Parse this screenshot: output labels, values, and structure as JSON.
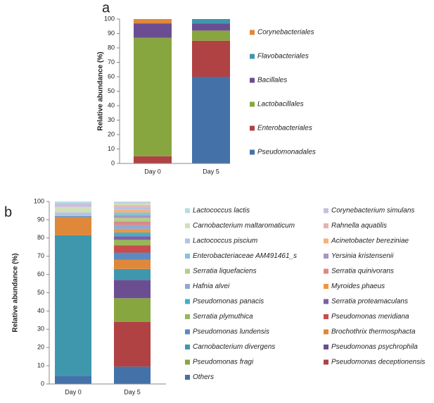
{
  "chart_data": [
    {
      "type": "bar",
      "stacked": true,
      "title": "a",
      "ylabel": "Relative abundance (%)",
      "categories": [
        "Day 0",
        "Day 5"
      ],
      "ylim": [
        0,
        100
      ],
      "yticks": [
        0,
        10,
        20,
        30,
        40,
        50,
        60,
        70,
        80,
        90,
        100
      ],
      "series": [
        {
          "name": "Pseudomonadales",
          "color": "#4472a8",
          "values": [
            0,
            60
          ]
        },
        {
          "name": "Enterobacteriales",
          "color": "#b04244",
          "values": [
            5,
            25
          ]
        },
        {
          "name": "Lactobacillales",
          "color": "#88a640",
          "values": [
            82,
            7
          ]
        },
        {
          "name": "Bacillales",
          "color": "#6b4e92",
          "values": [
            10,
            5
          ]
        },
        {
          "name": "Flavobacteriales",
          "color": "#3f97ad",
          "values": [
            0,
            3
          ]
        },
        {
          "name": "Corynebacteriales",
          "color": "#e0883a",
          "values": [
            3,
            0
          ]
        }
      ]
    },
    {
      "type": "bar",
      "stacked": true,
      "title": "b",
      "ylabel": "Relative abundance (%)",
      "categories": [
        "Day 0",
        "Day 5"
      ],
      "ylim": [
        0,
        100
      ],
      "yticks": [
        0,
        10,
        20,
        30,
        40,
        50,
        60,
        70,
        80,
        90,
        100
      ],
      "series": [
        {
          "name": "Others",
          "color": "#4472a8",
          "values": [
            4.5,
            9.5
          ]
        },
        {
          "name": "Pseudomonas deceptionensis",
          "color": "#b04244",
          "values": [
            0,
            24.5
          ]
        },
        {
          "name": "Pseudomonas fragi",
          "color": "#88a640",
          "values": [
            0,
            13
          ]
        },
        {
          "name": "Pseudomonas psychrophila",
          "color": "#6b4e92",
          "values": [
            0,
            10
          ]
        },
        {
          "name": "Carnobacterium divergens",
          "color": "#3f97ad",
          "values": [
            77,
            6
          ]
        },
        {
          "name": "Brochothrix thermosphacta",
          "color": "#e0883a",
          "values": [
            10,
            5
          ]
        },
        {
          "name": "Pseudomonas lundensis",
          "color": "#5b8ac0",
          "values": [
            0.5,
            4
          ]
        },
        {
          "name": "Pseudomonas meridiana",
          "color": "#c84c4c",
          "values": [
            0,
            4
          ]
        },
        {
          "name": "Serratia plymuthica",
          "color": "#97b857",
          "values": [
            0,
            3
          ]
        },
        {
          "name": "Serratia proteamaculans",
          "color": "#7d5fa6",
          "values": [
            0,
            2
          ]
        },
        {
          "name": "Pseudomonas panacis",
          "color": "#42b0c8",
          "values": [
            0,
            2
          ]
        },
        {
          "name": "Myroides phaeus",
          "color": "#f0963e",
          "values": [
            0,
            2
          ]
        },
        {
          "name": "Hafnia alvei",
          "color": "#8fa9d4",
          "values": [
            0,
            2
          ]
        },
        {
          "name": "Serratia quinivorans",
          "color": "#d88b8a",
          "values": [
            0,
            2
          ]
        },
        {
          "name": "Serratia liquefaciens",
          "color": "#b6cc8a",
          "values": [
            0,
            2
          ]
        },
        {
          "name": "Yersinia kristensenii",
          "color": "#a796c4",
          "values": [
            0,
            1.5
          ]
        },
        {
          "name": "Enterobacteriaceae AM491461_s",
          "color": "#86c4d4",
          "values": [
            0,
            1.5
          ]
        },
        {
          "name": "Acinetobacter bereziniae",
          "color": "#f5b27c",
          "values": [
            0,
            1.5
          ]
        },
        {
          "name": "Lactococcus piscium",
          "color": "#b3c4e3",
          "values": [
            2,
            1.5
          ]
        },
        {
          "name": "Rahnella aquatilis",
          "color": "#e5b3b3",
          "values": [
            0,
            1
          ]
        },
        {
          "name": "Carnobacterium maltaromaticum",
          "color": "#d1e0b9",
          "values": [
            3,
            1
          ]
        },
        {
          "name": "Corynebacterium simulans",
          "color": "#c8bedb",
          "values": [
            2,
            0.5
          ]
        },
        {
          "name": "Lactococcus lactis",
          "color": "#b6dde8",
          "values": [
            1,
            0.5
          ]
        }
      ]
    }
  ]
}
